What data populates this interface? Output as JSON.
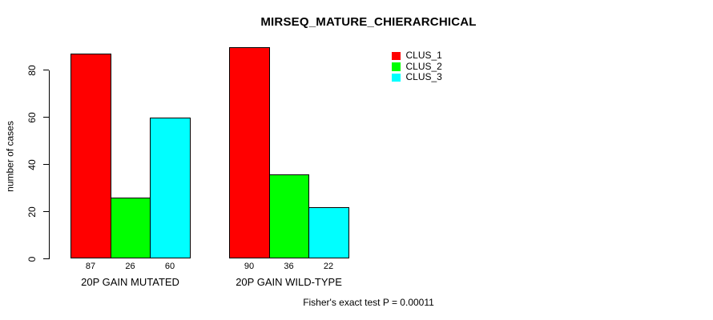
{
  "chart_data": {
    "type": "bar",
    "title": "MIRSEQ_MATURE_CHIERARCHICAL",
    "ylabel": "number of cases",
    "footnote": "Fisher's exact test P = 0.00011",
    "ylim": [
      0,
      90
    ],
    "yticks": [
      0,
      20,
      40,
      60,
      80
    ],
    "grid": false,
    "legend_position": "top-right",
    "categories": [
      "20P GAIN MUTATED",
      "20P GAIN WILD-TYPE"
    ],
    "series": [
      {
        "name": "CLUS_1",
        "color": "#FF0000",
        "values": [
          87,
          90
        ]
      },
      {
        "name": "CLUS_2",
        "color": "#00FF00",
        "values": [
          26,
          36
        ]
      },
      {
        "name": "CLUS_3",
        "color": "#00FFFF",
        "values": [
          60,
          22
        ]
      }
    ]
  }
}
